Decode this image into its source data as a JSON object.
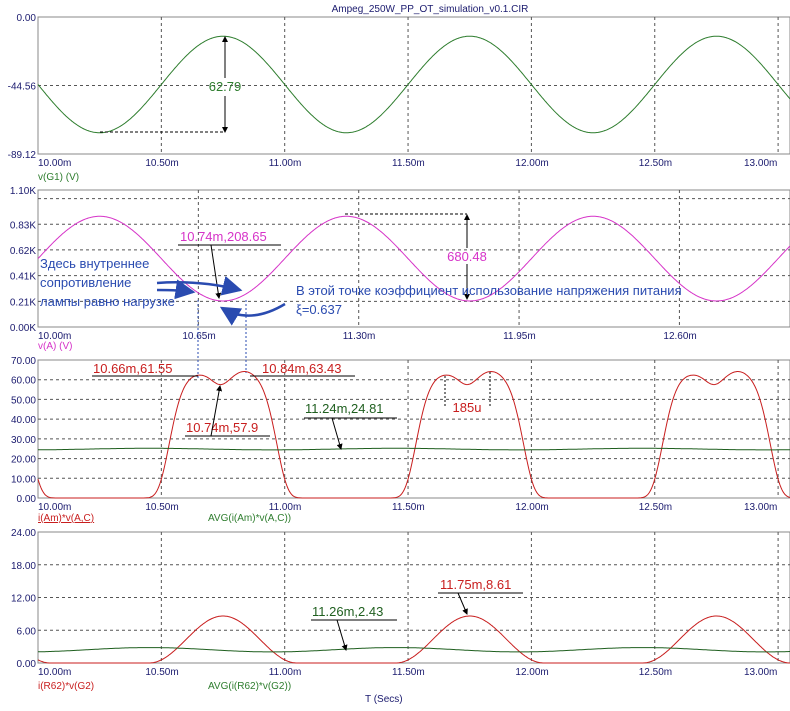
{
  "title": "Ampeg_250W_PP_OT_simulation_v0.1.CIR",
  "x_axis_label": "T (Secs)",
  "colors": {
    "green": "#2e7d2e",
    "magenta": "#d633c8",
    "red": "#c81e1e",
    "darkgreen": "#1f5f1f",
    "axis": "#1a1a6e",
    "note": "#2a4bb0"
  },
  "chart_data": [
    {
      "type": "line",
      "ylabel": "v(G1) (V)",
      "ylim": [
        -89.12,
        0
      ],
      "yticks": [
        "0.00",
        "-44.56",
        "-89.12"
      ],
      "ytick_values": [
        0,
        -44.56,
        -89.12
      ],
      "xlim": [
        10,
        13
      ],
      "xtick_values": [
        10,
        10.5,
        11,
        11.5,
        12,
        12.5,
        13
      ],
      "xticks": [
        "10.00m",
        "10.50m",
        "11.00m",
        "11.50m",
        "12.00m",
        "12.50m",
        "13.00m"
      ],
      "series": [
        {
          "name": "v(G1) (V)",
          "color": "#2e7d2e",
          "model": "sine",
          "offset": -43.9,
          "amplitude": 31.4,
          "period_ms": 1,
          "peak_at_ms": 10.75
        }
      ],
      "annotations": [
        {
          "text": "62.79",
          "kind": "peak-to-peak"
        }
      ]
    },
    {
      "type": "line",
      "ylabel": "v(A) (V)",
      "ylim": [
        0,
        1100
      ],
      "yticks": [
        "1.10K",
        "0.83K",
        "0.62K",
        "0.41K",
        "0.21K",
        "0.00K"
      ],
      "ytick_values": [
        1100,
        825,
        619,
        413,
        206,
        0
      ],
      "xlim": [
        10,
        13
      ],
      "xtick_values": [
        10,
        10.65,
        11.3,
        11.95,
        12.6
      ],
      "xticks": [
        "10.00m",
        "10.65m",
        "11.30m",
        "11.95m",
        "12.60m"
      ],
      "series": [
        {
          "name": "v(A) (V)",
          "color": "#d633c8",
          "model": "sine",
          "offset": 549,
          "amplitude": -340,
          "period_ms": 1,
          "peak_at_ms": 10.75
        }
      ],
      "annotations": [
        {
          "text": "10.74m,208.65"
        },
        {
          "text": "680.48"
        }
      ],
      "notes": [
        "Здесь внутреннее",
        "сопротивление",
        "лампы равно нагрузке",
        "В этой точке коэффициент использование напряжения питания",
        "ξ=0.637"
      ]
    },
    {
      "type": "line",
      "ylabel": "",
      "ylim": [
        0,
        70
      ],
      "yticks": [
        "70.00",
        "60.00",
        "50.00",
        "40.00",
        "30.00",
        "20.00",
        "10.00",
        "0.00"
      ],
      "ytick_values": [
        70,
        60,
        50,
        40,
        30,
        20,
        10,
        0
      ],
      "xlim": [
        10,
        13
      ],
      "xtick_values": [
        10,
        10.5,
        11,
        11.5,
        12,
        12.5,
        13
      ],
      "xticks": [
        "10.00m",
        "10.50m",
        "11.00m",
        "11.50m",
        "12.00m",
        "12.50m",
        "13.00m"
      ],
      "series": [
        {
          "name": "i(Am)*v(A,C)",
          "color": "#c81e1e",
          "model": "pulse",
          "peaks": [
            [
              10.66,
              61.55
            ],
            [
              10.74,
              57.9
            ],
            [
              10.84,
              63.43
            ]
          ]
        },
        {
          "name": "AVG(i(Am)*v(A,C))",
          "color": "#1f5f1f",
          "model": "flat",
          "value": 24.81
        }
      ],
      "annotations": [
        {
          "text": "10.66m,61.55"
        },
        {
          "text": "10.84m,63.43"
        },
        {
          "text": "10.74m,57.9"
        },
        {
          "text": "11.24m,24.81"
        },
        {
          "text": "185u"
        }
      ]
    },
    {
      "type": "line",
      "ylabel": "",
      "ylim": [
        0,
        24
      ],
      "yticks": [
        "24.00",
        "18.00",
        "12.00",
        "6.00",
        "0.00"
      ],
      "ytick_values": [
        24,
        18,
        12,
        6,
        0
      ],
      "xlim": [
        10,
        13
      ],
      "xtick_values": [
        10,
        10.5,
        11,
        11.5,
        12,
        12.5,
        13
      ],
      "xticks": [
        "10.00m",
        "10.50m",
        "11.00m",
        "11.50m",
        "12.00m",
        "12.50m",
        "13.00m"
      ],
      "series": [
        {
          "name": "i(R62)*v(G2)",
          "color": "#c81e1e",
          "model": "bell",
          "value": 8.61
        },
        {
          "name": "AVG(i(R62)*v(G2))",
          "color": "#1f5f1f",
          "model": "flat",
          "value": 2.43
        }
      ],
      "annotations": [
        {
          "text": "11.75m,8.61"
        },
        {
          "text": "11.26m,2.43"
        }
      ]
    }
  ]
}
